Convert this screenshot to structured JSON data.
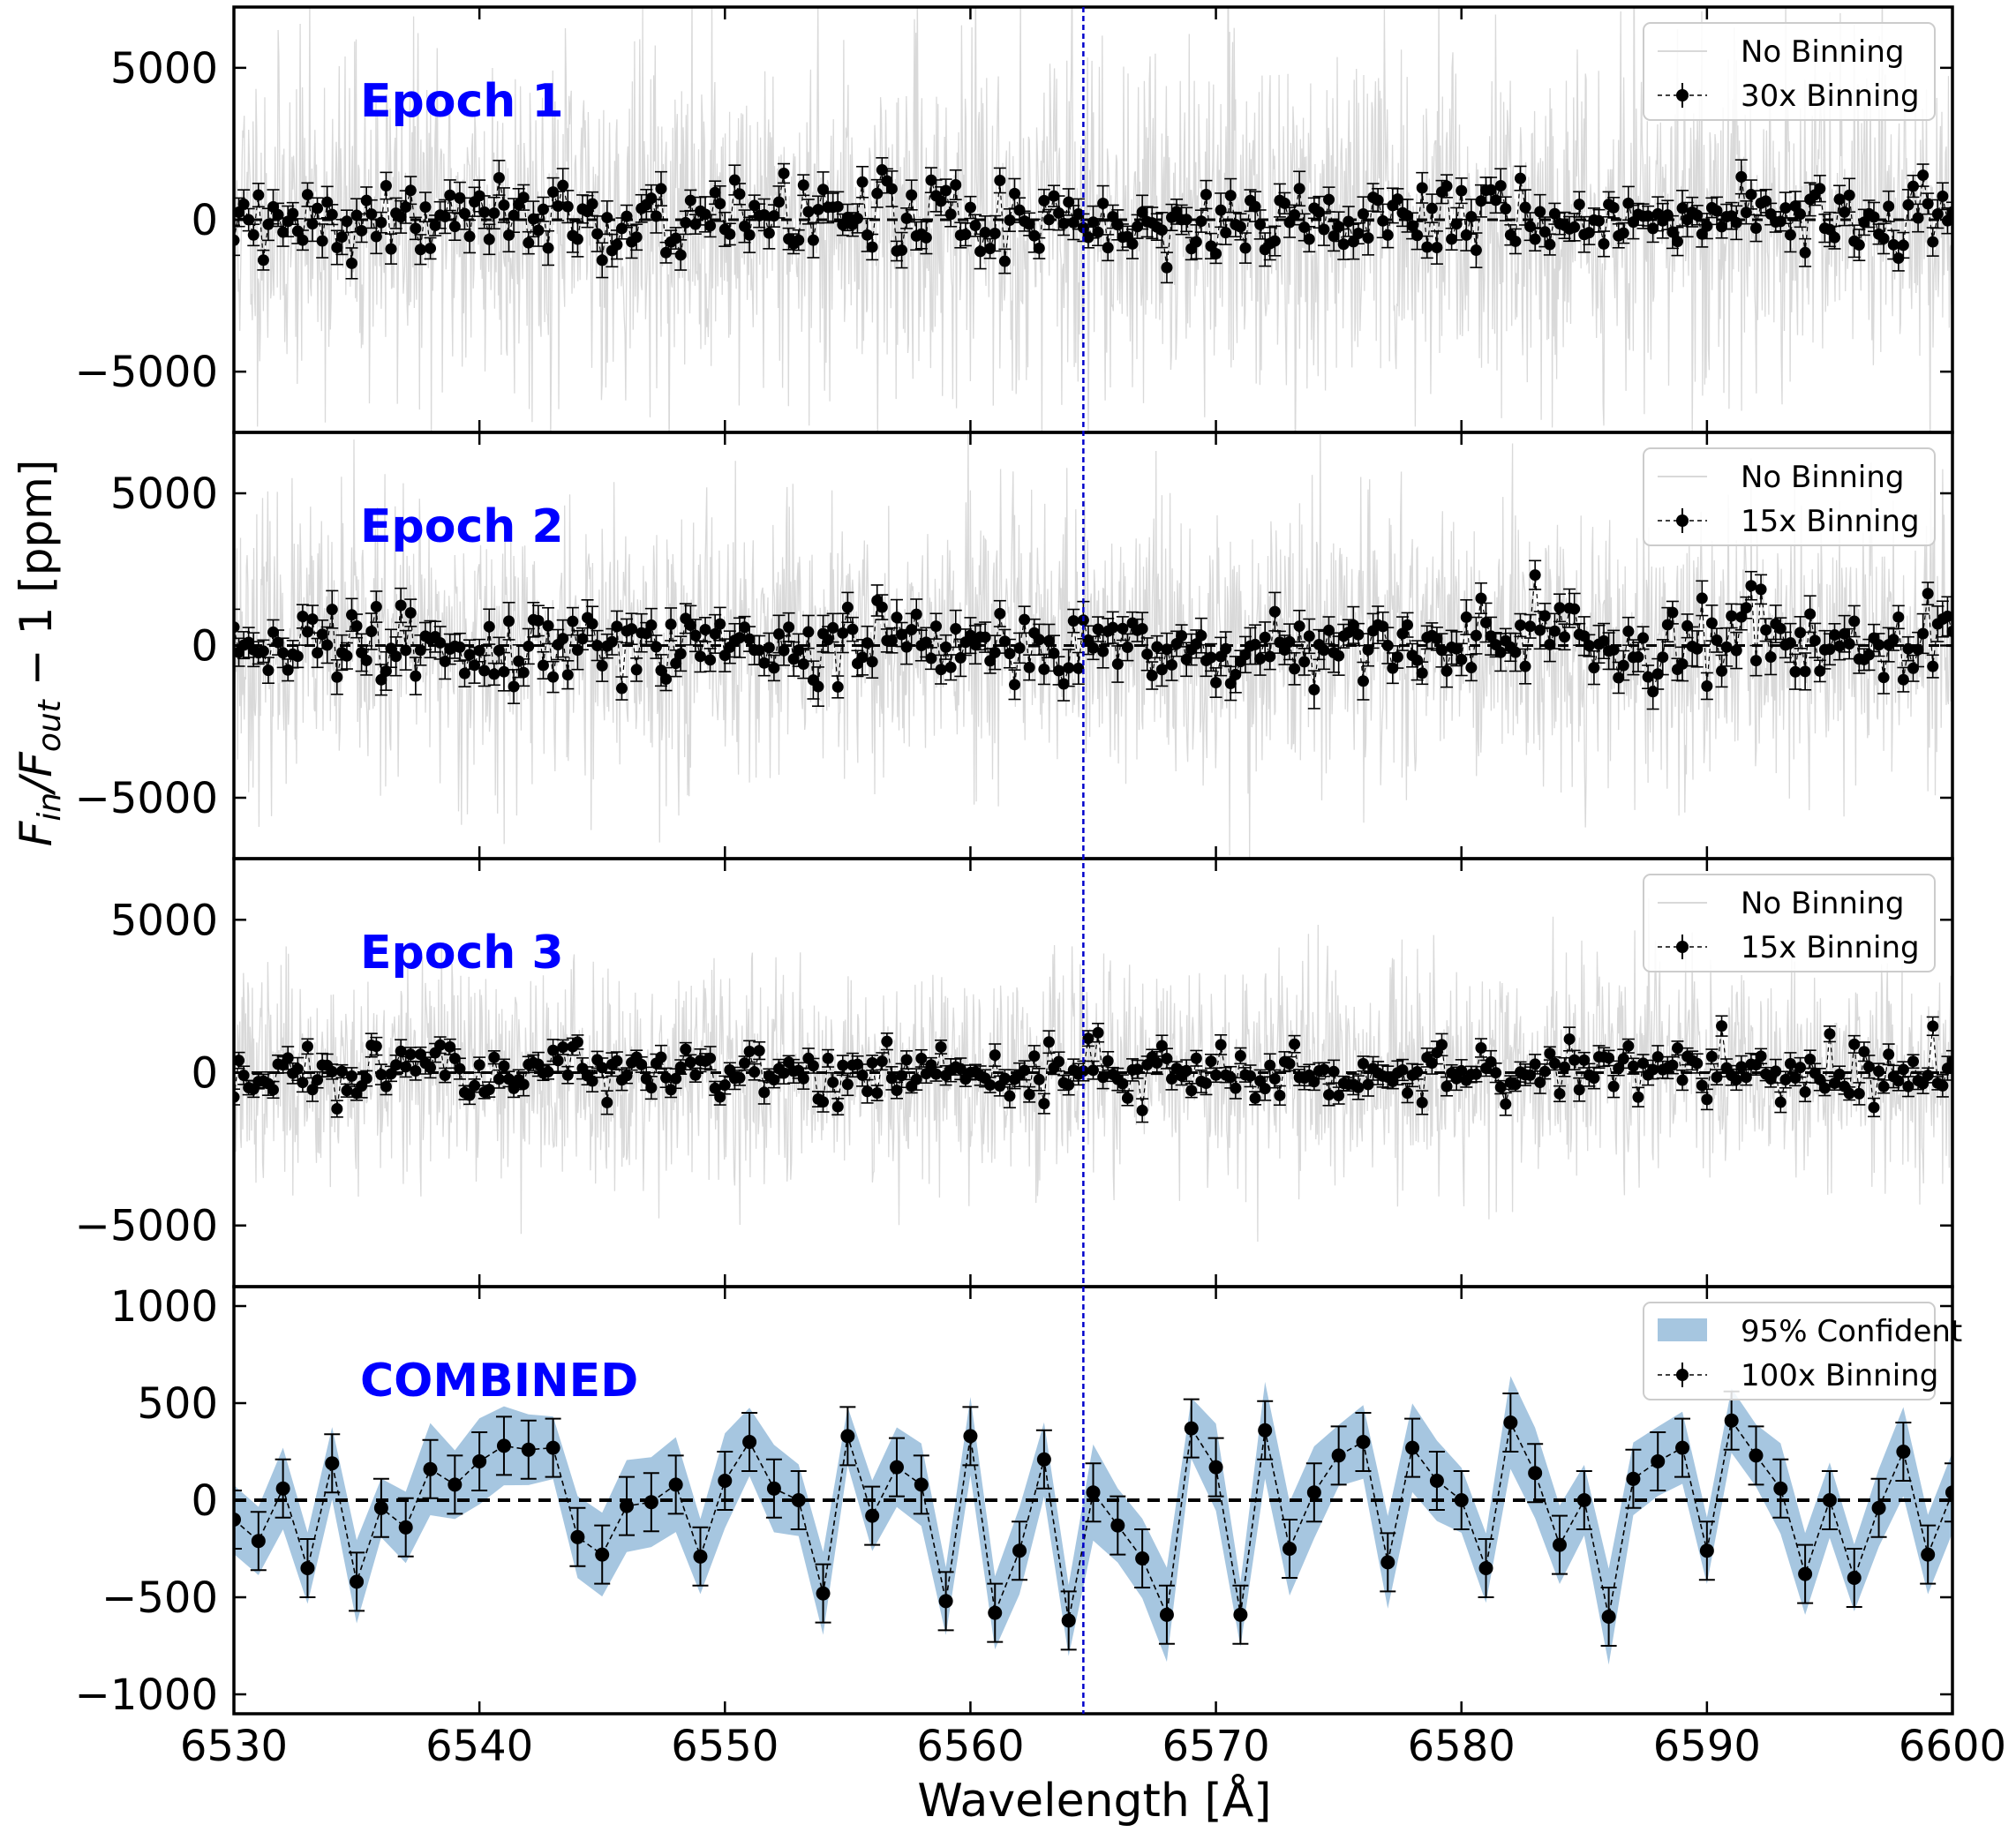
{
  "figure": {
    "xlabel": "Wavelength [Å]",
    "ylabel_parts": [
      "F",
      "in",
      "/F",
      "out",
      " − 1 [ppm]"
    ]
  },
  "colors": {
    "raw": "#d9d9d9",
    "binned": "#000000",
    "vline": "#0000cc",
    "label": "#0000ff",
    "band": "#a6c6e0"
  },
  "chart_data": [
    {
      "type": "line",
      "title": "Epoch 1",
      "xlim": [
        6530,
        6600
      ],
      "ylim": [
        -7000,
        7000
      ],
      "yticks": [
        -5000,
        0,
        5000
      ],
      "ytick_labels": [
        "−5000",
        "0",
        "5000"
      ],
      "vline_x": 6564.6,
      "legend": [
        "No Binning",
        "30x Binning"
      ],
      "raw_noise_std": 2700,
      "binned_x_step": 0.2,
      "binned_sigma": 600,
      "binned_errbar": 450,
      "seed": 11
    },
    {
      "type": "line",
      "title": "Epoch 2",
      "xlim": [
        6530,
        6600
      ],
      "ylim": [
        -7000,
        7000
      ],
      "yticks": [
        -5000,
        0,
        5000
      ],
      "ytick_labels": [
        "−5000",
        "0",
        "5000"
      ],
      "vline_x": 6564.6,
      "legend": [
        "No Binning",
        "15x Binning"
      ],
      "raw_noise_std": 2200,
      "binned_x_step": 0.2,
      "binned_sigma": 650,
      "binned_errbar": 500,
      "seed": 23
    },
    {
      "type": "line",
      "title": "Epoch 3",
      "xlim": [
        6530,
        6600
      ],
      "ylim": [
        -7000,
        7000
      ],
      "yticks": [
        -5000,
        0,
        5000
      ],
      "ytick_labels": [
        "−5000",
        "0",
        "5000"
      ],
      "vline_x": 6564.6,
      "legend": [
        "No Binning",
        "15x Binning"
      ],
      "raw_noise_std": 1700,
      "binned_x_step": 0.2,
      "binned_sigma": 500,
      "binned_errbar": 300,
      "seed": 37
    },
    {
      "type": "line",
      "title": "COMBINED",
      "xlim": [
        6530,
        6600
      ],
      "ylim": [
        -1100,
        1100
      ],
      "yticks": [
        -1000,
        -500,
        0,
        500,
        1000
      ],
      "ytick_labels": [
        "−1000",
        "−500",
        "0",
        "500",
        "1000"
      ],
      "xticks": [
        6530,
        6540,
        6550,
        6560,
        6570,
        6580,
        6590,
        6600
      ],
      "vline_x": 6564.6,
      "legend": [
        "95% Confident",
        "100x Binning"
      ],
      "series": [
        {
          "name": "100x Binning",
          "x": [
            6530.0,
            6531.0,
            6532.0,
            6533.0,
            6534.0,
            6535.0,
            6536.0,
            6537.0,
            6538.0,
            6539.0,
            6540.0,
            6541.0,
            6542.0,
            6543.0,
            6544.0,
            6545.0,
            6546.0,
            6547.0,
            6548.0,
            6549.0,
            6550.0,
            6551.0,
            6552.0,
            6553.0,
            6554.0,
            6555.0,
            6556.0,
            6557.0,
            6558.0,
            6559.0,
            6560.0,
            6561.0,
            6562.0,
            6563.0,
            6564.0,
            6565.0,
            6566.0,
            6567.0,
            6568.0,
            6569.0,
            6570.0,
            6571.0,
            6572.0,
            6573.0,
            6574.0,
            6575.0,
            6576.0,
            6577.0,
            6578.0,
            6579.0,
            6580.0,
            6581.0,
            6582.0,
            6583.0,
            6584.0,
            6585.0,
            6586.0,
            6587.0,
            6588.0,
            6589.0,
            6590.0,
            6591.0,
            6592.0,
            6593.0,
            6594.0,
            6595.0,
            6596.0,
            6597.0,
            6598.0,
            6599.0,
            6600.0
          ],
          "y": [
            -100,
            -210,
            60,
            -350,
            190,
            -420,
            -40,
            -140,
            160,
            80,
            200,
            280,
            260,
            270,
            -190,
            -280,
            -30,
            -10,
            80,
            -290,
            100,
            300,
            60,
            0,
            -480,
            330,
            -80,
            170,
            80,
            -520,
            330,
            -580,
            -260,
            210,
            -620,
            40,
            -130,
            -300,
            -590,
            370,
            170,
            -590,
            360,
            -250,
            40,
            230,
            300,
            -320,
            270,
            100,
            0,
            -350,
            400,
            140,
            -230,
            0,
            -600,
            110,
            200,
            270,
            -260,
            410,
            230,
            60,
            -380,
            0,
            -400,
            -40,
            250,
            -280,
            40
          ],
          "err": [
            150,
            150,
            150,
            150,
            150,
            150,
            150,
            150,
            150,
            150,
            150,
            150,
            150,
            150,
            150,
            150,
            150,
            150,
            150,
            150,
            150,
            150,
            150,
            150,
            150,
            150,
            150,
            150,
            150,
            150,
            150,
            150,
            150,
            150,
            150,
            150,
            150,
            150,
            150,
            150,
            150,
            150,
            150,
            150,
            150,
            150,
            150,
            150,
            150,
            150,
            150,
            150,
            150,
            150,
            150,
            150,
            150,
            150,
            150,
            150,
            150,
            150,
            150,
            150,
            150,
            150,
            150,
            150,
            150,
            150,
            150
          ]
        }
      ],
      "band_halfwidth": 200
    }
  ]
}
